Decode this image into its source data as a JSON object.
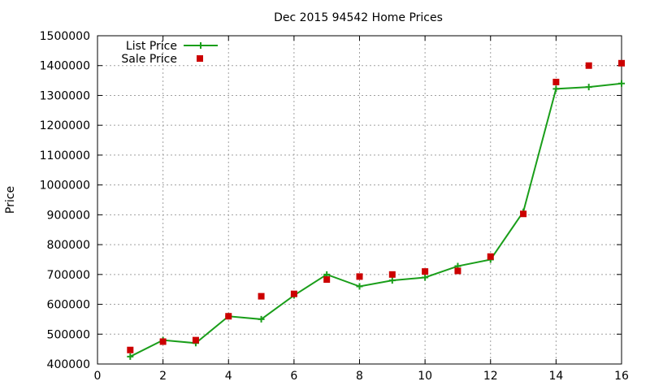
{
  "chart_data": {
    "type": "line",
    "title": "Dec 2015 94542 Home Prices",
    "xlabel": "",
    "ylabel": "Price",
    "xlim": [
      0,
      16
    ],
    "ylim": [
      400000,
      1500000
    ],
    "xticks": [
      0,
      2,
      4,
      6,
      8,
      10,
      12,
      14,
      16
    ],
    "yticks": [
      400000,
      500000,
      600000,
      700000,
      800000,
      900000,
      1000000,
      1100000,
      1200000,
      1300000,
      1400000,
      1500000
    ],
    "grid": true,
    "legend_position": "top-left",
    "series": [
      {
        "name": "List Price",
        "style": "line-with-plus-markers",
        "color": "#1a9e1a",
        "x": [
          1,
          2,
          3,
          4,
          5,
          6,
          7,
          8,
          9,
          10,
          11,
          12,
          13,
          14,
          15,
          16
        ],
        "values": [
          425000,
          480000,
          470000,
          560000,
          550000,
          630000,
          700000,
          660000,
          680000,
          690000,
          728000,
          750000,
          910000,
          1322000,
          1328000,
          1340000
        ]
      },
      {
        "name": "Sale Price",
        "style": "square-markers",
        "color": "#cc0000",
        "x": [
          1,
          2,
          3,
          4,
          5,
          6,
          7,
          8,
          9,
          10,
          11,
          12,
          13,
          14,
          15,
          16
        ],
        "values": [
          447000,
          475000,
          480000,
          560000,
          627000,
          635000,
          683000,
          693000,
          700000,
          710000,
          712000,
          760000,
          903000,
          1345000,
          1400000,
          1408000
        ]
      }
    ]
  }
}
